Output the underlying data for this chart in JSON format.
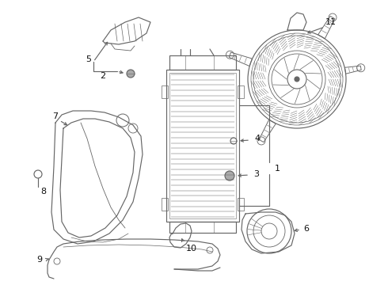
{
  "bg": "#ffffff",
  "lc": "#666666",
  "tc": "#111111",
  "lw": 0.85,
  "figsize": [
    4.9,
    3.6
  ],
  "dpi": 100
}
